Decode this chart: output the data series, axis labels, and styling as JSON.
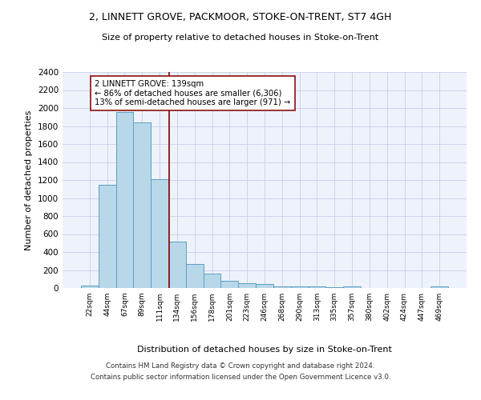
{
  "title1": "2, LINNETT GROVE, PACKMOOR, STOKE-ON-TRENT, ST7 4GH",
  "title2": "Size of property relative to detached houses in Stoke-on-Trent",
  "xlabel": "Distribution of detached houses by size in Stoke-on-Trent",
  "ylabel": "Number of detached properties",
  "bin_labels": [
    "22sqm",
    "44sqm",
    "67sqm",
    "89sqm",
    "111sqm",
    "134sqm",
    "156sqm",
    "178sqm",
    "201sqm",
    "223sqm",
    "246sqm",
    "268sqm",
    "290sqm",
    "313sqm",
    "335sqm",
    "357sqm",
    "380sqm",
    "402sqm",
    "424sqm",
    "447sqm",
    "469sqm"
  ],
  "bar_values": [
    30,
    1150,
    1960,
    1840,
    1210,
    520,
    265,
    160,
    80,
    50,
    45,
    20,
    20,
    15,
    5,
    20,
    0,
    0,
    0,
    0,
    20
  ],
  "bar_color": "#b8d8ea",
  "bar_edge_color": "#5a9fc0",
  "property_line_x": 4.55,
  "annotation_text1": "2 LINNETT GROVE: 139sqm",
  "annotation_text2": "← 86% of detached houses are smaller (6,306)",
  "annotation_text3": "13% of semi-detached houses are larger (971) →",
  "vline_color": "#8b1010",
  "annotation_box_color": "#ffffff",
  "annotation_box_edge": "#8b1010",
  "ylim": [
    0,
    2400
  ],
  "yticks": [
    0,
    200,
    400,
    600,
    800,
    1000,
    1200,
    1400,
    1600,
    1800,
    2000,
    2200,
    2400
  ],
  "footer1": "Contains HM Land Registry data © Crown copyright and database right 2024.",
  "footer2": "Contains public sector information licensed under the Open Government Licence v3.0.",
  "bg_color": "#eef2fb",
  "grid_color": "#c8cfe8"
}
